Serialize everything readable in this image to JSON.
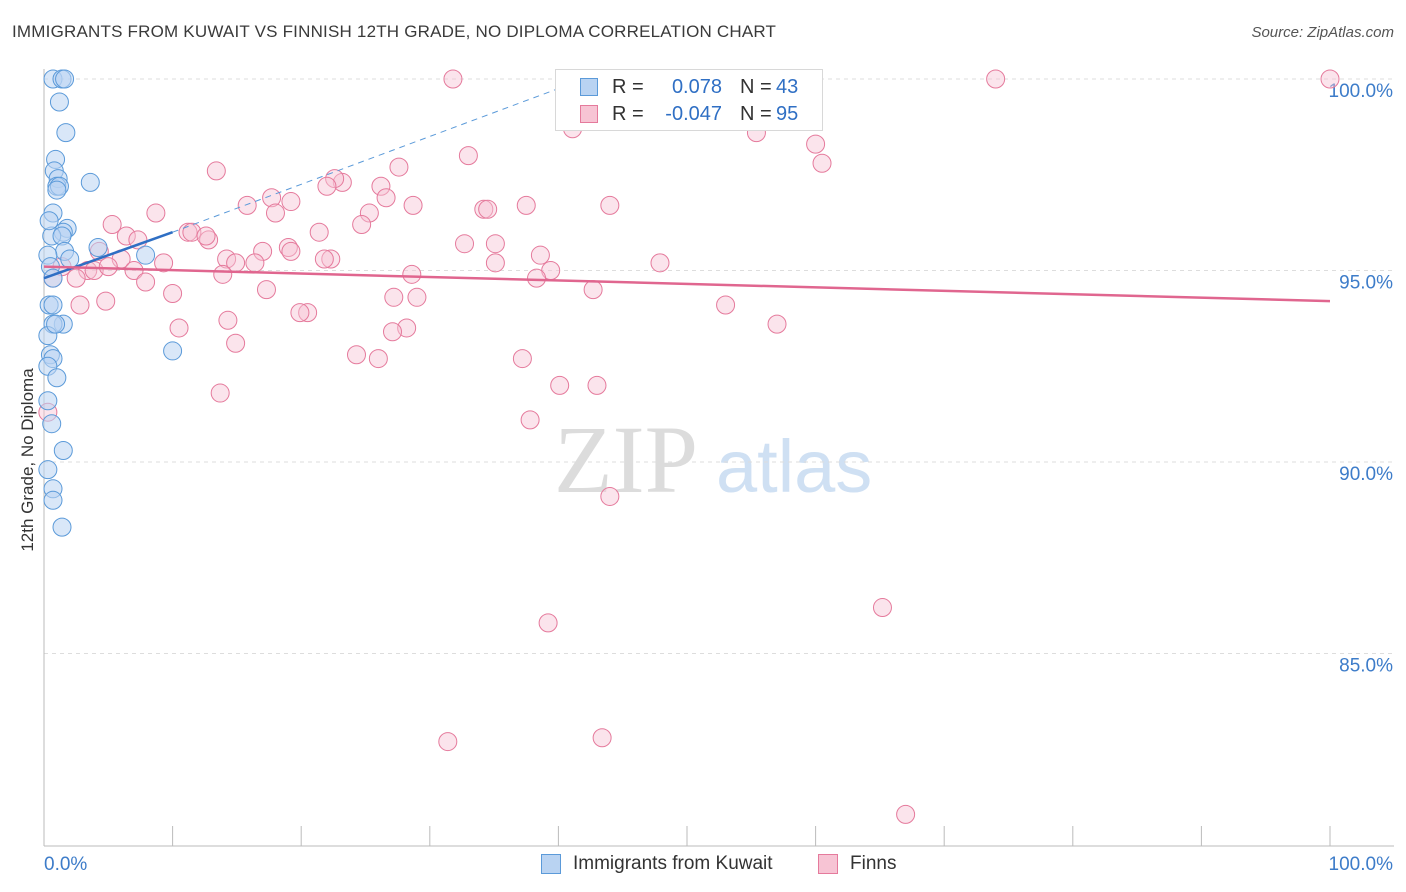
{
  "title": "IMMIGRANTS FROM KUWAIT VS FINNISH 12TH GRADE, NO DIPLOMA CORRELATION CHART",
  "source": "Source: ZipAtlas.com",
  "watermark": {
    "zip": "ZIP",
    "atlas": "atlas"
  },
  "legend": {
    "rows": [
      {
        "r_label": "R =",
        "r_value": "0.078",
        "n_label": "N =",
        "n_value": "43",
        "color": "#5b9ad9",
        "fill": "#b9d3f2"
      },
      {
        "r_label": "R =",
        "r_value": "-0.047",
        "n_label": "N =",
        "n_value": "95",
        "color": "#e57a9c",
        "fill": "#f7c4d4"
      }
    ]
  },
  "bottom_legend": {
    "items": [
      {
        "label": "Immigrants from Kuwait",
        "color": "#5b9ad9",
        "fill": "#b9d3f2"
      },
      {
        "label": "Finns",
        "color": "#e57a9c",
        "fill": "#f7c4d4"
      }
    ]
  },
  "chart_data": {
    "type": "scatter",
    "title": "IMMIGRANTS FROM KUWAIT VS FINNISH 12TH GRADE, NO DIPLOMA CORRELATION CHART",
    "xlabel": "",
    "ylabel": "12th Grade, No Diploma",
    "xlim": [
      0,
      100
    ],
    "ylim": [
      80.5,
      100.5
    ],
    "x_tick_labels": [
      "0.0%",
      "100.0%"
    ],
    "y_ticks": [
      85,
      90,
      95,
      100
    ],
    "y_tick_labels": [
      "85.0%",
      "90.0%",
      "95.0%",
      "100.0%"
    ],
    "grid": "horizontal dashed",
    "legend_placement": "top-center",
    "series": [
      {
        "name": "Immigrants from Kuwait",
        "color": "#5b9ad9",
        "points": [
          [
            0.7,
            100
          ],
          [
            1.4,
            100
          ],
          [
            1.6,
            100
          ],
          [
            1.2,
            99.4
          ],
          [
            1.7,
            98.6
          ],
          [
            0.9,
            97.9
          ],
          [
            0.8,
            97.6
          ],
          [
            1.1,
            97.4
          ],
          [
            1.0,
            97.2
          ],
          [
            1.2,
            97.2
          ],
          [
            3.6,
            97.3
          ],
          [
            1.0,
            97.1
          ],
          [
            0.7,
            96.5
          ],
          [
            1.8,
            96.1
          ],
          [
            1.5,
            96.0
          ],
          [
            0.6,
            95.9
          ],
          [
            1.4,
            95.9
          ],
          [
            4.2,
            95.6
          ],
          [
            1.6,
            95.5
          ],
          [
            7.9,
            95.4
          ],
          [
            0.3,
            95.4
          ],
          [
            2.0,
            95.3
          ],
          [
            0.5,
            95.1
          ],
          [
            0.7,
            94.8
          ],
          [
            0.4,
            94.1
          ],
          [
            0.7,
            94.1
          ],
          [
            1.5,
            93.6
          ],
          [
            0.7,
            93.6
          ],
          [
            0.3,
            93.3
          ],
          [
            10.0,
            92.9
          ],
          [
            0.5,
            92.8
          ],
          [
            0.7,
            92.7
          ],
          [
            0.3,
            92.5
          ],
          [
            1.0,
            92.2
          ],
          [
            0.3,
            91.6
          ],
          [
            0.6,
            91.0
          ],
          [
            1.5,
            90.3
          ],
          [
            0.3,
            89.8
          ],
          [
            0.7,
            89.3
          ],
          [
            0.7,
            89.0
          ],
          [
            1.4,
            88.3
          ],
          [
            0.4,
            96.3
          ],
          [
            0.9,
            93.6
          ]
        ],
        "trend": {
          "x0": 0,
          "y0": 94.8,
          "x1": 10,
          "y1": 96.0,
          "dashed_to": {
            "x": 42,
            "y": 100
          }
        }
      },
      {
        "name": "Finns",
        "color": "#e57a9c",
        "points": [
          [
            31.8,
            100
          ],
          [
            55.5,
            100
          ],
          [
            58.8,
            100
          ],
          [
            74.0,
            100
          ],
          [
            100,
            100
          ],
          [
            41.1,
            98.7
          ],
          [
            55.4,
            98.6
          ],
          [
            60.0,
            98.3
          ],
          [
            33.0,
            98.0
          ],
          [
            60.5,
            97.8
          ],
          [
            13.4,
            97.6
          ],
          [
            27.6,
            97.7
          ],
          [
            23.2,
            97.3
          ],
          [
            22.6,
            97.4
          ],
          [
            26.2,
            97.2
          ],
          [
            17.7,
            96.9
          ],
          [
            22.0,
            97.2
          ],
          [
            26.6,
            96.9
          ],
          [
            19.2,
            96.8
          ],
          [
            37.5,
            96.7
          ],
          [
            28.7,
            96.7
          ],
          [
            44.0,
            96.7
          ],
          [
            15.8,
            96.7
          ],
          [
            34.2,
            96.6
          ],
          [
            34.5,
            96.6
          ],
          [
            18.0,
            96.5
          ],
          [
            25.3,
            96.5
          ],
          [
            24.7,
            96.2
          ],
          [
            8.7,
            96.5
          ],
          [
            5.3,
            96.2
          ],
          [
            6.4,
            95.9
          ],
          [
            11.2,
            96.0
          ],
          [
            11.5,
            96.0
          ],
          [
            21.4,
            96.0
          ],
          [
            7.3,
            95.8
          ],
          [
            12.8,
            95.8
          ],
          [
            19.0,
            95.6
          ],
          [
            32.7,
            95.7
          ],
          [
            35.1,
            95.7
          ],
          [
            17.0,
            95.5
          ],
          [
            19.2,
            95.5
          ],
          [
            4.3,
            95.5
          ],
          [
            38.6,
            95.4
          ],
          [
            22.3,
            95.3
          ],
          [
            14.2,
            95.3
          ],
          [
            21.8,
            95.3
          ],
          [
            6.0,
            95.3
          ],
          [
            9.3,
            95.2
          ],
          [
            14.9,
            95.2
          ],
          [
            16.4,
            95.2
          ],
          [
            35.1,
            95.2
          ],
          [
            47.9,
            95.2
          ],
          [
            1.4,
            95.1
          ],
          [
            3.4,
            95.0
          ],
          [
            3.9,
            95.0
          ],
          [
            7.0,
            95.0
          ],
          [
            39.4,
            95.0
          ],
          [
            28.6,
            94.9
          ],
          [
            13.9,
            94.9
          ],
          [
            2.5,
            94.8
          ],
          [
            38.3,
            94.8
          ],
          [
            7.9,
            94.7
          ],
          [
            17.3,
            94.5
          ],
          [
            42.7,
            94.5
          ],
          [
            10.0,
            94.4
          ],
          [
            27.2,
            94.3
          ],
          [
            29.0,
            94.3
          ],
          [
            4.8,
            94.2
          ],
          [
            2.8,
            94.1
          ],
          [
            53.0,
            94.1
          ],
          [
            20.5,
            93.9
          ],
          [
            19.9,
            93.9
          ],
          [
            14.3,
            93.7
          ],
          [
            57.0,
            93.6
          ],
          [
            10.5,
            93.5
          ],
          [
            28.2,
            93.5
          ],
          [
            27.1,
            93.4
          ],
          [
            14.9,
            93.1
          ],
          [
            24.3,
            92.8
          ],
          [
            26.0,
            92.7
          ],
          [
            37.2,
            92.7
          ],
          [
            40.1,
            92.0
          ],
          [
            43.0,
            92.0
          ],
          [
            13.7,
            91.8
          ],
          [
            0.3,
            91.3
          ],
          [
            37.8,
            91.1
          ],
          [
            44.0,
            89.1
          ],
          [
            39.2,
            85.8
          ],
          [
            65.2,
            86.2
          ],
          [
            31.4,
            82.7
          ],
          [
            43.4,
            82.8
          ],
          [
            67.0,
            80.8
          ],
          [
            5.0,
            95.1
          ],
          [
            0.7,
            94.8
          ],
          [
            12.6,
            95.9
          ]
        ],
        "trend": {
          "x0": 0,
          "y0": 95.1,
          "x1": 100,
          "y1": 94.2
        }
      }
    ]
  }
}
